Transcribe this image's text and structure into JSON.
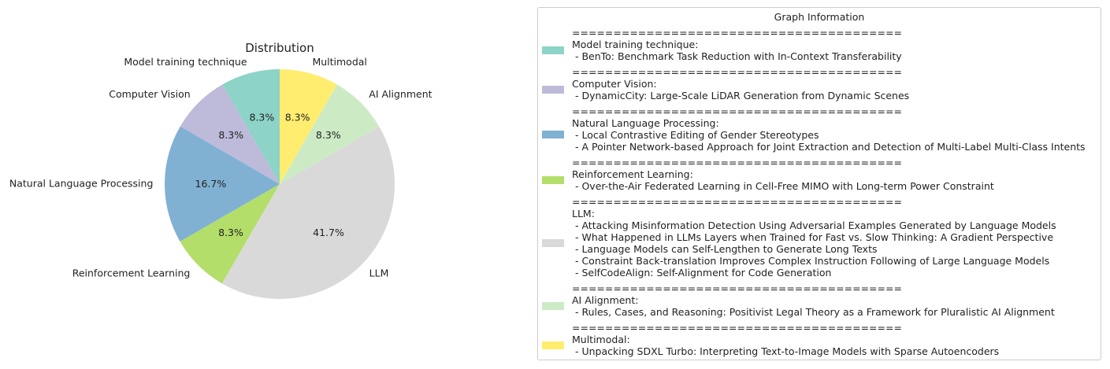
{
  "chart_data": {
    "type": "pie",
    "title": "Distribution",
    "slices": [
      {
        "label": "Model training technique",
        "value": 8.3,
        "pct_label": "8.3%",
        "color": "#8dd3c7"
      },
      {
        "label": "Computer Vision",
        "value": 8.3,
        "pct_label": "8.3%",
        "color": "#bebada"
      },
      {
        "label": "Natural Language Processing",
        "value": 16.7,
        "pct_label": "16.7%",
        "color": "#80b1d3"
      },
      {
        "label": "Reinforcement Learning",
        "value": 8.3,
        "pct_label": "8.3%",
        "color": "#b3de69"
      },
      {
        "label": "LLM",
        "value": 41.7,
        "pct_label": "41.7%",
        "color": "#d9d9d9"
      },
      {
        "label": "AI Alignment",
        "value": 8.3,
        "pct_label": "8.3%",
        "color": "#ccebc5"
      },
      {
        "label": "Multimodal",
        "value": 8.3,
        "pct_label": "8.3%",
        "color": "#ffed6f"
      }
    ],
    "legend": {
      "title": "Graph Information",
      "placement": "right",
      "separator": "========================================",
      "entries": [
        {
          "category": "Model training technique:",
          "color": "#8dd3c7",
          "items": [
            " - BenTo: Benchmark Task Reduction with In-Context Transferability"
          ]
        },
        {
          "category": "Computer Vision:",
          "color": "#bebada",
          "items": [
            " - DynamicCity: Large-Scale LiDAR Generation from Dynamic Scenes"
          ]
        },
        {
          "category": "Natural Language Processing:",
          "color": "#80b1d3",
          "items": [
            " - Local Contrastive Editing of Gender Stereotypes",
            " - A Pointer Network-based Approach for Joint Extraction and Detection of Multi-Label Multi-Class Intents"
          ]
        },
        {
          "category": "Reinforcement Learning:",
          "color": "#b3de69",
          "items": [
            " - Over-the-Air Federated Learning in Cell-Free MIMO with Long-term Power Constraint"
          ]
        },
        {
          "category": "LLM:",
          "color": "#d9d9d9",
          "items": [
            " - Attacking Misinformation Detection Using Adversarial Examples Generated by Language Models",
            " - What Happened in LLMs Layers when Trained for Fast vs. Slow Thinking: A Gradient Perspective",
            " - Language Models can Self-Lengthen to Generate Long Texts",
            " - Constraint Back-translation Improves Complex Instruction Following of Large Language Models",
            " - SelfCodeAlign: Self-Alignment for Code Generation"
          ]
        },
        {
          "category": "AI Alignment:",
          "color": "#ccebc5",
          "items": [
            " - Rules, Cases, and Reasoning: Positivist Legal Theory as a Framework for Pluralistic AI Alignment"
          ]
        },
        {
          "category": "Multimodal:",
          "color": "#ffed6f",
          "items": [
            " - Unpacking SDXL Turbo: Interpreting Text-to-Image Models with Sparse Autoencoders"
          ]
        }
      ]
    }
  }
}
